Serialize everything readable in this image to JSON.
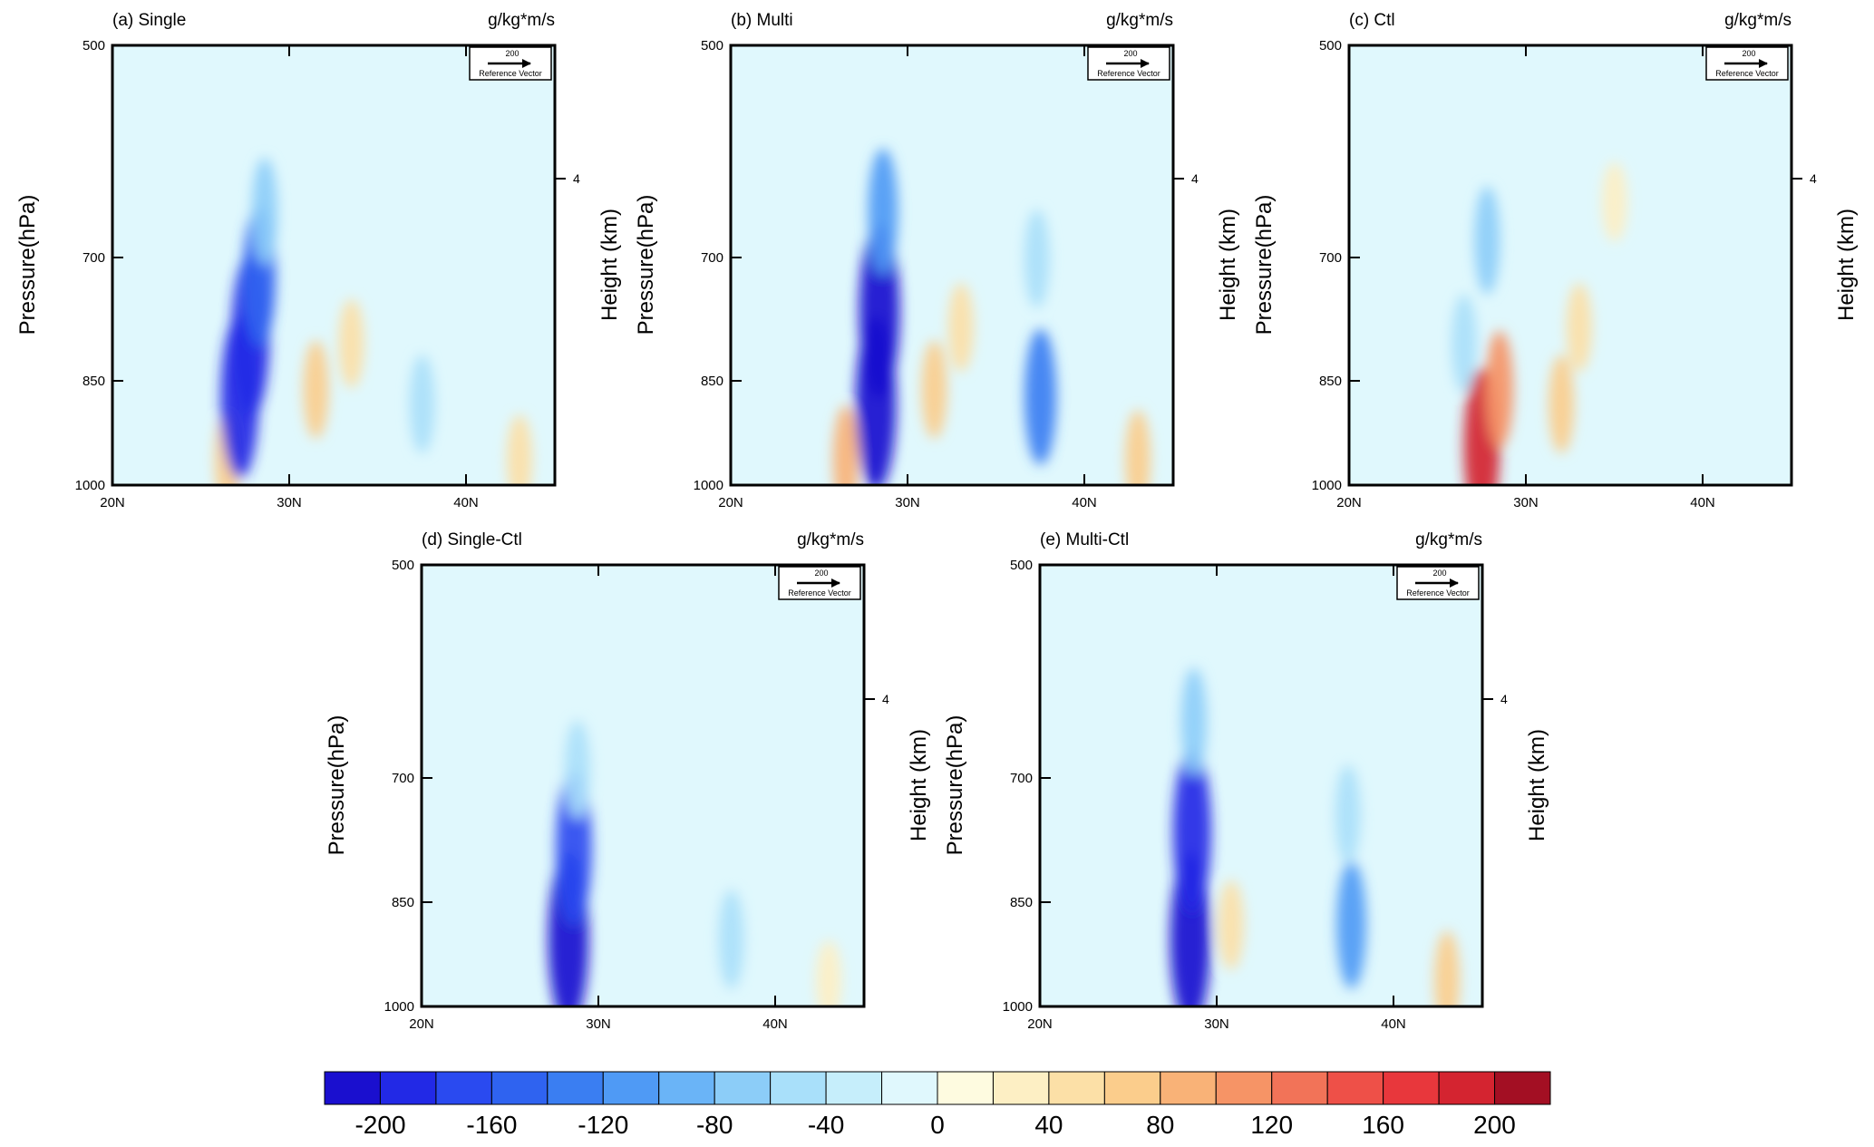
{
  "chart_data": {
    "type": "heatmap",
    "units": "g/kg*m/s",
    "x_axis": {
      "ticks": [
        "20N",
        "30N",
        "40N"
      ],
      "range_deg": [
        20,
        45
      ]
    },
    "y_axis": {
      "label": "Pressure(hPa)",
      "ticks": [
        "500",
        "700",
        "850",
        "1000"
      ],
      "range_hPa": [
        1000,
        500
      ]
    },
    "y_axis_right": {
      "label": "Height (km)",
      "ticks": [
        "4"
      ]
    },
    "reference_vector": {
      "value": "200",
      "label": "Reference Vector"
    },
    "colorbar": {
      "labels": [
        "-200",
        "-160",
        "-120",
        "-80",
        "-40",
        "0",
        "40",
        "80",
        "120",
        "160",
        "200"
      ],
      "label_values": [
        -200,
        -160,
        -120,
        -80,
        -40,
        0,
        40,
        80,
        120,
        160,
        200
      ],
      "levels": [
        -220,
        -200,
        -180,
        -160,
        -140,
        -120,
        -100,
        -80,
        -60,
        -40,
        -20,
        0,
        20,
        40,
        60,
        80,
        100,
        120,
        140,
        160,
        180,
        200,
        220
      ],
      "colors": [
        "#1a0fcf",
        "#2229e6",
        "#2a4af0",
        "#2f63f0",
        "#3a7ef2",
        "#4f9af5",
        "#6ab4f7",
        "#8ccdf8",
        "#a9e0fa",
        "#c6eefb",
        "#e0f8fd",
        "#fefbe0",
        "#fdefc4",
        "#fce0a7",
        "#fbcd8c",
        "#f9b277",
        "#f69466",
        "#f27358",
        "#ee5048",
        "#e8373c",
        "#d42430",
        "#a30f23"
      ]
    },
    "panels": [
      {
        "id": "a",
        "title": "(a) Single",
        "cells": [
          {
            "lat": 26.5,
            "p": 960,
            "v": 60
          },
          {
            "lat": 27.2,
            "p": 870,
            "v": -200
          },
          {
            "lat": 27.8,
            "p": 790,
            "v": -200
          },
          {
            "lat": 28.3,
            "p": 720,
            "v": -150
          },
          {
            "lat": 28.6,
            "p": 650,
            "v": -80
          },
          {
            "lat": 31.5,
            "p": 860,
            "v": 60
          },
          {
            "lat": 33.5,
            "p": 800,
            "v": 40
          },
          {
            "lat": 37.5,
            "p": 880,
            "v": -60
          },
          {
            "lat": 43,
            "p": 960,
            "v": 40
          }
        ]
      },
      {
        "id": "b",
        "title": "(b) Multi",
        "cells": [
          {
            "lat": 26.5,
            "p": 960,
            "v": 80
          },
          {
            "lat": 28.2,
            "p": 880,
            "v": -220
          },
          {
            "lat": 28.4,
            "p": 760,
            "v": -220
          },
          {
            "lat": 28.6,
            "p": 650,
            "v": -120
          },
          {
            "lat": 31.5,
            "p": 860,
            "v": 60
          },
          {
            "lat": 33,
            "p": 780,
            "v": 40
          },
          {
            "lat": 37.5,
            "p": 870,
            "v": -140
          },
          {
            "lat": 37.3,
            "p": 700,
            "v": -60
          },
          {
            "lat": 43,
            "p": 960,
            "v": 60
          }
        ]
      },
      {
        "id": "c",
        "title": "(c) Ctl",
        "cells": [
          {
            "lat": 27.5,
            "p": 940,
            "v": 180
          },
          {
            "lat": 28.5,
            "p": 860,
            "v": 100
          },
          {
            "lat": 26.5,
            "p": 800,
            "v": -60
          },
          {
            "lat": 27.8,
            "p": 680,
            "v": -80
          },
          {
            "lat": 32,
            "p": 880,
            "v": 60
          },
          {
            "lat": 33,
            "p": 780,
            "v": 40
          },
          {
            "lat": 35,
            "p": 640,
            "v": 20
          }
        ]
      },
      {
        "id": "d",
        "title": "(d) Single-Ctl",
        "cells": [
          {
            "lat": 28.3,
            "p": 900,
            "v": -220
          },
          {
            "lat": 28.6,
            "p": 780,
            "v": -180
          },
          {
            "lat": 28.8,
            "p": 690,
            "v": -60
          },
          {
            "lat": 37.5,
            "p": 900,
            "v": -60
          },
          {
            "lat": 43,
            "p": 960,
            "v": 20
          }
        ]
      },
      {
        "id": "e",
        "title": "(e) Multi-Ctl",
        "cells": [
          {
            "lat": 28.5,
            "p": 900,
            "v": -220
          },
          {
            "lat": 28.6,
            "p": 760,
            "v": -200
          },
          {
            "lat": 28.7,
            "p": 640,
            "v": -80
          },
          {
            "lat": 30.8,
            "p": 880,
            "v": 40
          },
          {
            "lat": 37.6,
            "p": 880,
            "v": -120
          },
          {
            "lat": 37.4,
            "p": 740,
            "v": -60
          },
          {
            "lat": 43,
            "p": 960,
            "v": 60
          }
        ]
      }
    ]
  }
}
